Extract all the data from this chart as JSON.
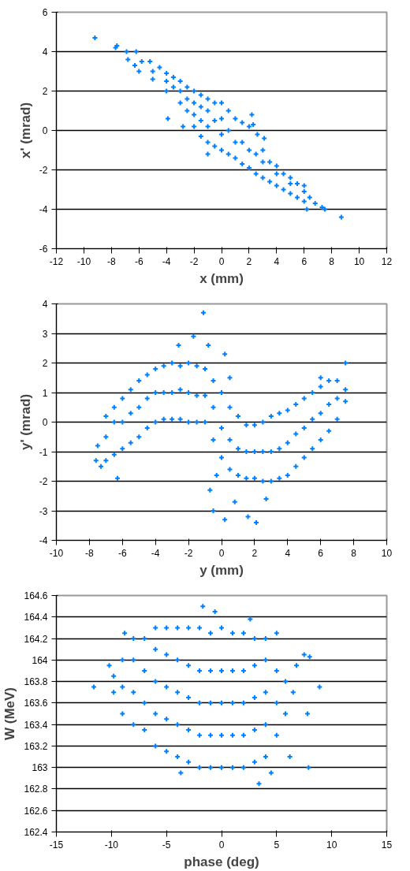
{
  "chart_data": [
    {
      "type": "scatter",
      "xlabel": "x (mm)",
      "ylabel": "x' (mrad)",
      "xlim": [
        -12,
        12
      ],
      "ylim": [
        -6,
        6
      ],
      "xticks": [
        -12,
        -10,
        -8,
        -6,
        -4,
        -2,
        0,
        2,
        4,
        6,
        8,
        10,
        12
      ],
      "yticks": [
        -6,
        -4,
        -2,
        0,
        2,
        4,
        6
      ],
      "grid": "y",
      "marker": "cross",
      "color": "#0080ff",
      "x": [
        -9.2,
        -7.7,
        -7.6,
        -6.9,
        -6.8,
        -6.2,
        -3.9,
        -2.8,
        -1.0,
        2.2,
        2.3,
        2.6,
        3.1,
        6.2,
        6.8,
        7.3,
        7.5,
        8.7,
        -6.3,
        -6,
        -5.8,
        -5.2,
        -5,
        -5,
        -4.5,
        -4,
        -4,
        -4,
        -3.5,
        -3.5,
        -3,
        -3,
        -3,
        -2.5,
        -2.5,
        -2.5,
        -2,
        -2,
        -2,
        -2,
        -1.5,
        -1.5,
        -1.5,
        -1.5,
        -1,
        -1,
        -1,
        -1,
        -0.5,
        -0.5,
        -0.5,
        0,
        0,
        0,
        0,
        0.5,
        0.5,
        0.5,
        1,
        1,
        1,
        1.5,
        1.5,
        1.5,
        2,
        2,
        2,
        2.5,
        2.5,
        3,
        3,
        3,
        3.5,
        3.5,
        4,
        4,
        4,
        4.5,
        4.5,
        5,
        5,
        5,
        5.5,
        5.5,
        6,
        6,
        6,
        6.4
      ],
      "values": [
        4.7,
        4.2,
        4.3,
        4.0,
        3.6,
        4.0,
        0.6,
        0.2,
        -1.2,
        0.8,
        0.3,
        -0.2,
        -0.4,
        -4.0,
        -3.7,
        -3.9,
        -4.0,
        -4.4,
        3.3,
        3.0,
        3.5,
        3.5,
        2.6,
        3.0,
        3.2,
        2.0,
        2.5,
        2.9,
        2.2,
        2.7,
        1.4,
        2.0,
        2.5,
        1.0,
        1.6,
        2.2,
        0.2,
        0.8,
        1.4,
        2.0,
        -0.3,
        0.5,
        1.2,
        1.8,
        -0.6,
        0.2,
        1.0,
        1.6,
        -0.8,
        0.5,
        1.4,
        -1.0,
        -0.2,
        0.6,
        1.4,
        -1.2,
        0,
        1.0,
        -1.4,
        -0.6,
        0.6,
        -1.7,
        -0.6,
        0.4,
        -1.9,
        -1.0,
        0.2,
        -2.2,
        -1.2,
        -2.4,
        -1.6,
        -1.0,
        -2.6,
        -1.6,
        -2.8,
        -2.2,
        -1.8,
        -3.0,
        -2.2,
        -3.2,
        -2.7,
        -2.4,
        -3.4,
        -2.7,
        -3.6,
        -3.1,
        -2.8,
        -3.4
      ]
    },
    {
      "type": "scatter",
      "xlabel": "y (mm)",
      "ylabel": "y' (mrad)",
      "xlim": [
        -10,
        10
      ],
      "ylim": [
        -4,
        4
      ],
      "xticks": [
        -10,
        -8,
        -6,
        -4,
        -2,
        0,
        2,
        4,
        6,
        8,
        10
      ],
      "yticks": [
        -4,
        -3,
        -2,
        -1,
        0,
        1,
        2,
        3,
        4
      ],
      "grid": "y",
      "marker": "cross",
      "color": "#0080ff",
      "x": [
        -1.1,
        -1.7,
        -0.8,
        -2.6,
        0.2,
        -6.3,
        -7.3,
        -0.7,
        -0.5,
        0.2,
        1.6,
        2.1,
        2.7,
        0.8,
        7.5,
        6.0,
        -0.3,
        0.5,
        -7.6,
        -7.5,
        -7,
        -7,
        -7,
        -6.5,
        -6.5,
        -6.5,
        -6,
        -6,
        -6,
        -5.5,
        -5.5,
        -5.5,
        -5,
        -5,
        -5,
        -4.5,
        -4.5,
        -4.5,
        -4,
        -4,
        -4,
        -3.5,
        -3.5,
        -3.5,
        -3,
        -3,
        -3,
        -2.5,
        -2.5,
        -2.5,
        -2,
        -2,
        -2,
        -1.5,
        -1.5,
        -1.5,
        -1,
        -1,
        -1,
        -0.5,
        -0.5,
        -0.5,
        0,
        0,
        0,
        0.5,
        0.5,
        0.5,
        1,
        1,
        1,
        1.5,
        1.5,
        1.5,
        2,
        2,
        2,
        2.5,
        2.5,
        2.5,
        3,
        3,
        3,
        3.5,
        3.5,
        3.5,
        4,
        4,
        4,
        4.5,
        4.5,
        4.5,
        5,
        5,
        5,
        5.5,
        5.5,
        5.5,
        6,
        6,
        6,
        6.5,
        6.5,
        6.5,
        7,
        7,
        7,
        7.5,
        7.5
      ],
      "values": [
        3.7,
        2.9,
        2.6,
        2.6,
        2.3,
        -1.9,
        -1.5,
        -2.3,
        -3.0,
        -3.3,
        -3.2,
        -3.4,
        -2.6,
        -2.7,
        2.0,
        1.5,
        -1.8,
        1.5,
        -1.3,
        -0.8,
        -1.3,
        -0.5,
        0.2,
        -1.1,
        0,
        0.5,
        -0.9,
        0,
        0.8,
        -0.7,
        0.3,
        1.1,
        -0.5,
        0.5,
        1.4,
        -0.2,
        0.8,
        1.6,
        0,
        1.0,
        1.8,
        0.1,
        1.0,
        1.9,
        0.1,
        1.0,
        2.0,
        0.1,
        1.1,
        1.9,
        0,
        1.0,
        2.0,
        0,
        0.9,
        1.9,
        0,
        0.9,
        1.8,
        -0.6,
        0.5,
        1.4,
        -1.2,
        -0.2,
        1.0,
        -1.6,
        -0.6,
        0.5,
        -1.8,
        -0.9,
        0.2,
        -1.9,
        -1.0,
        -0.1,
        -1.9,
        -1.0,
        -0.1,
        -2.0,
        -1.0,
        0,
        -2.0,
        -1.0,
        0.2,
        -1.9,
        -0.9,
        0.3,
        -1.8,
        -0.7,
        0.4,
        -1.5,
        -0.4,
        0.6,
        -1.2,
        -0.2,
        0.8,
        -0.9,
        0.1,
        1.0,
        -0.6,
        0.3,
        1.2,
        -0.3,
        0.6,
        1.4,
        0.1,
        0.8,
        1.4,
        0.7,
        1.1
      ]
    },
    {
      "type": "scatter",
      "xlabel": "phase (deg)",
      "ylabel": "W (MeV)",
      "xlim": [
        -15,
        15
      ],
      "ylim": [
        162.4,
        164.6
      ],
      "xticks": [
        -15,
        -10,
        -5,
        0,
        5,
        10,
        15
      ],
      "yticks": [
        162.4,
        162.6,
        162.8,
        163,
        163.2,
        163.4,
        163.6,
        163.8,
        164,
        164.2,
        164.4,
        164.6
      ],
      "grid": "y",
      "marker": "cross",
      "color": "#0080ff",
      "x": [
        -11.6,
        -10.2,
        -1.7,
        -0.6,
        2.6,
        5.0,
        7.5,
        8.0,
        8.9,
        7.9,
        4.5,
        3.4,
        -3.7,
        7.8,
        6.2,
        -8.8,
        -9.8,
        -9.8,
        -9,
        -9,
        -9,
        -8,
        -8,
        -8,
        -8,
        -7,
        -7,
        -7,
        -7,
        -6,
        -6,
        -6,
        -6,
        -6,
        -5,
        -5,
        -5,
        -5,
        -5,
        -4,
        -4,
        -4,
        -4,
        -4,
        -3,
        -3,
        -3,
        -3,
        -3,
        -2,
        -2,
        -2,
        -2,
        -2,
        -1,
        -1,
        -1,
        -1,
        -1,
        0,
        0,
        0,
        0,
        0,
        1,
        1,
        1,
        1,
        1,
        2,
        2,
        2,
        2,
        2,
        3,
        3,
        3,
        3,
        3,
        4,
        4,
        4,
        4,
        4,
        5,
        5,
        5,
        5.8,
        5.8,
        6.5,
        6.8
      ],
      "values": [
        163.75,
        163.95,
        164.5,
        164.45,
        164.38,
        164.25,
        164.05,
        164.03,
        163.75,
        163.0,
        162.95,
        162.85,
        162.95,
        163.5,
        163.1,
        164.25,
        163.7,
        163.85,
        163.5,
        163.75,
        164.0,
        163.4,
        163.7,
        164.0,
        164.2,
        163.35,
        163.6,
        163.9,
        164.2,
        163.2,
        163.5,
        163.8,
        164.1,
        164.3,
        163.15,
        163.45,
        163.75,
        164.05,
        164.3,
        163.1,
        163.4,
        163.7,
        164.0,
        164.3,
        163.05,
        163.35,
        163.65,
        163.95,
        164.3,
        163.0,
        163.3,
        163.6,
        163.9,
        164.3,
        163.0,
        163.3,
        163.6,
        163.9,
        164.25,
        163.0,
        163.3,
        163.6,
        163.9,
        164.3,
        163.0,
        163.3,
        163.6,
        163.9,
        164.25,
        163.0,
        163.3,
        163.6,
        163.9,
        164.25,
        163.05,
        163.35,
        163.65,
        163.95,
        164.2,
        163.1,
        163.4,
        163.7,
        164.0,
        164.2,
        163.3,
        163.6,
        163.9,
        163.5,
        163.8,
        163.7,
        163.95
      ]
    }
  ]
}
